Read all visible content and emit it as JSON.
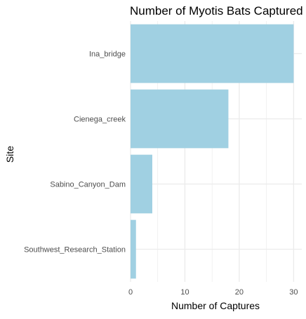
{
  "chart_data": {
    "type": "bar",
    "orientation": "horizontal",
    "title": "Number of Myotis Bats Captured",
    "xlabel": "Number of Captures",
    "ylabel": "Site",
    "categories": [
      "Ina_bridge",
      "Cienega_creek",
      "Sabino_Canyon_Dam",
      "Southwest_Research_Station"
    ],
    "values": [
      30,
      18,
      4,
      1
    ],
    "xlim": [
      0,
      31.5
    ],
    "xticks": [
      0,
      10,
      20,
      30
    ],
    "grid": true,
    "legend": "none",
    "bar_color": "#a0d0e2",
    "grid_color": "#ebebeb"
  }
}
